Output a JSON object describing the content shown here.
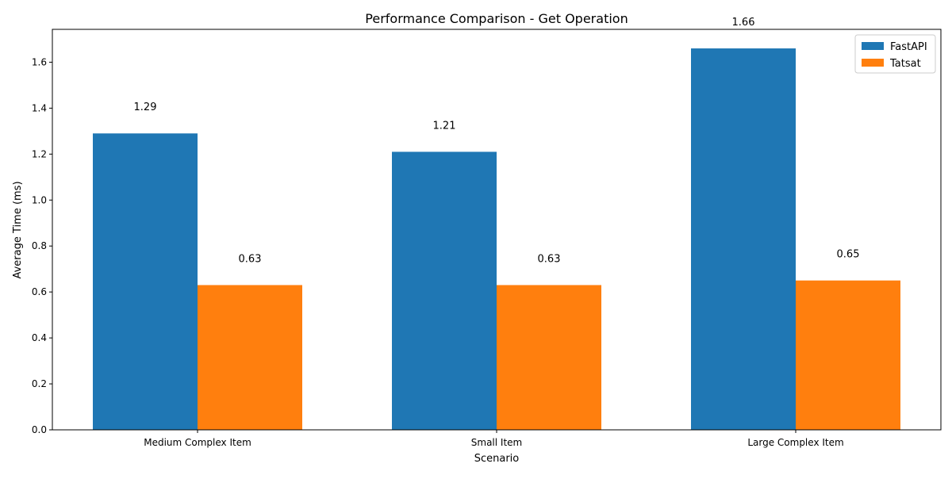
{
  "chart_data": {
    "type": "bar",
    "title": "Performance Comparison - Get Operation",
    "xlabel": "Scenario",
    "ylabel": "Average Time (ms)",
    "categories": [
      "Medium Complex Item",
      "Small Item",
      "Large Complex Item"
    ],
    "series": [
      {
        "name": "FastAPI",
        "color": "#1f77b4",
        "values": [
          1.29,
          1.21,
          1.66
        ],
        "labels": [
          "1.29",
          "1.21",
          "1.66"
        ]
      },
      {
        "name": "Tatsat",
        "color": "#ff7f0e",
        "values": [
          0.63,
          0.63,
          0.65
        ],
        "labels": [
          "0.63",
          "0.63",
          "0.65"
        ]
      }
    ],
    "ylim": [
      0,
      1.743
    ],
    "yticks": [
      0.0,
      0.2,
      0.4,
      0.6,
      0.8,
      1.0,
      1.2,
      1.4,
      1.6
    ],
    "ytick_labels": [
      "0.0",
      "0.2",
      "0.4",
      "0.6",
      "0.8",
      "1.0",
      "1.2",
      "1.4",
      "1.6"
    ],
    "grid": false,
    "legend_position": "top-right"
  }
}
